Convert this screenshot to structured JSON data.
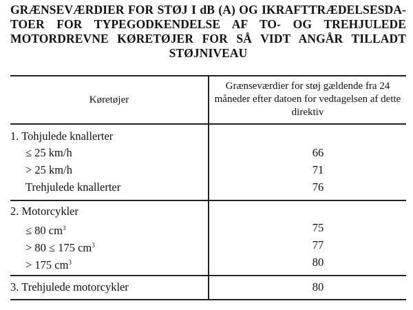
{
  "title_lines": [
    "GRÆNSEVÆRDIER FOR STØJ I dB (A) OG IKRAFTTRÆDELSESDA-",
    "TOER FOR TYPEGODKENDELSE AF TO- OG TREHJULEDE",
    "MOTORDREVNE KØRETØJER FOR SÅ VIDT ANGÅR TILLADT",
    "STØJNIVEAU"
  ],
  "table": {
    "headers": {
      "vehicle": "Køretøjer",
      "limit": "Grænseværdier for støj gældende fra 24 måneder efter datoen for vedtagelsen af dette direktiv"
    },
    "rows": [
      {
        "label": "1.  Tohjulede knallerter",
        "value": ""
      },
      {
        "label": "≤  25 km/h",
        "value": "66"
      },
      {
        "label": "> 25 km/h",
        "value": "71"
      },
      {
        "label": "Trehjulede knallerter",
        "value": "76"
      },
      {
        "label": "2.  Motorcykler",
        "value": ""
      },
      {
        "label": "≤  80 cm",
        "sup": "3",
        "value": "75"
      },
      {
        "label": "> 80  ≤  175 cm",
        "sup": "3",
        "value": "77"
      },
      {
        "label": "> 175 cm",
        "sup": "3",
        "value": "80"
      },
      {
        "label": "3.  Trehjulede motorcykler",
        "value": "80"
      }
    ]
  }
}
